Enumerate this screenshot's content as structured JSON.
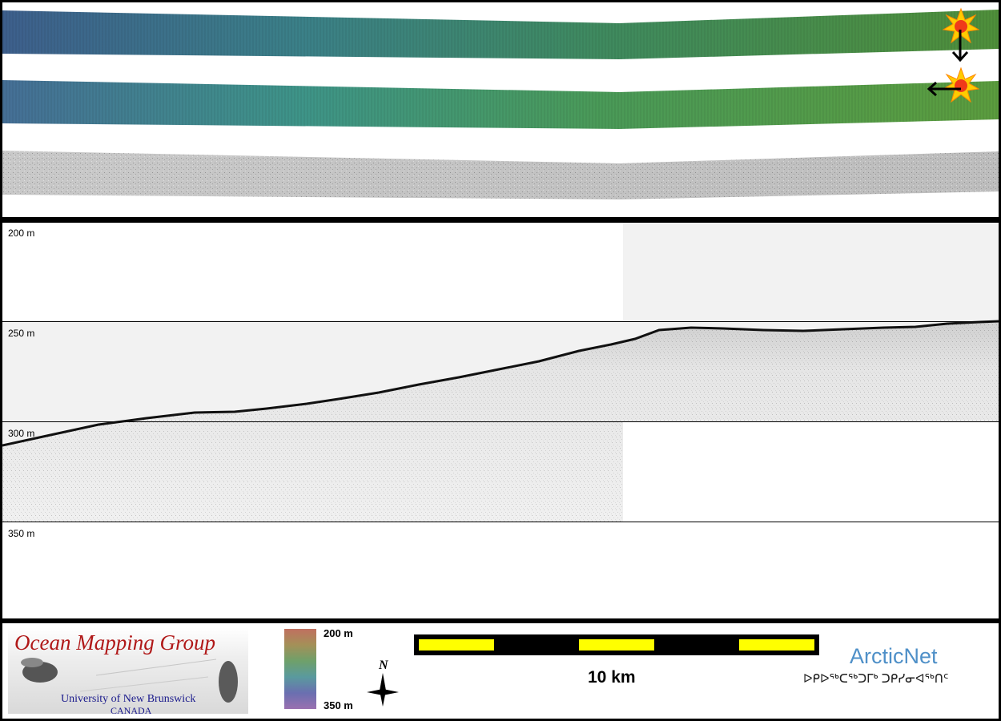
{
  "echogram": {
    "depth_labels": [
      "200 m",
      "250 m",
      "300 m",
      "350 m"
    ]
  },
  "legend": {
    "logo": {
      "title": "Ocean Mapping Group",
      "university": "University of New Brunswick",
      "country": "CANADA"
    },
    "colorbar": {
      "top_label": "200 m",
      "bottom_label": "350 m"
    },
    "north_arrow": {
      "label": "N"
    },
    "scale_bar": {
      "label": "10 km"
    },
    "arcticnet": {
      "name": "ArcticNet",
      "syllabics": "ᐅᑭᐅᖅᑕᖅᑐᒥᒃ ᑐᑭᓯᓂᐊᖅᑎᑦ"
    }
  },
  "colors": {
    "bathy_west": "#3e6a8e",
    "bathy_mid": "#3f8f7a",
    "bathy_east": "#4e8f3e",
    "scale_yellow": "#ffff00",
    "logo_red": "#b01818",
    "logo_blue": "#1a1a8c",
    "arcticnet_blue": "#4f90c8"
  }
}
